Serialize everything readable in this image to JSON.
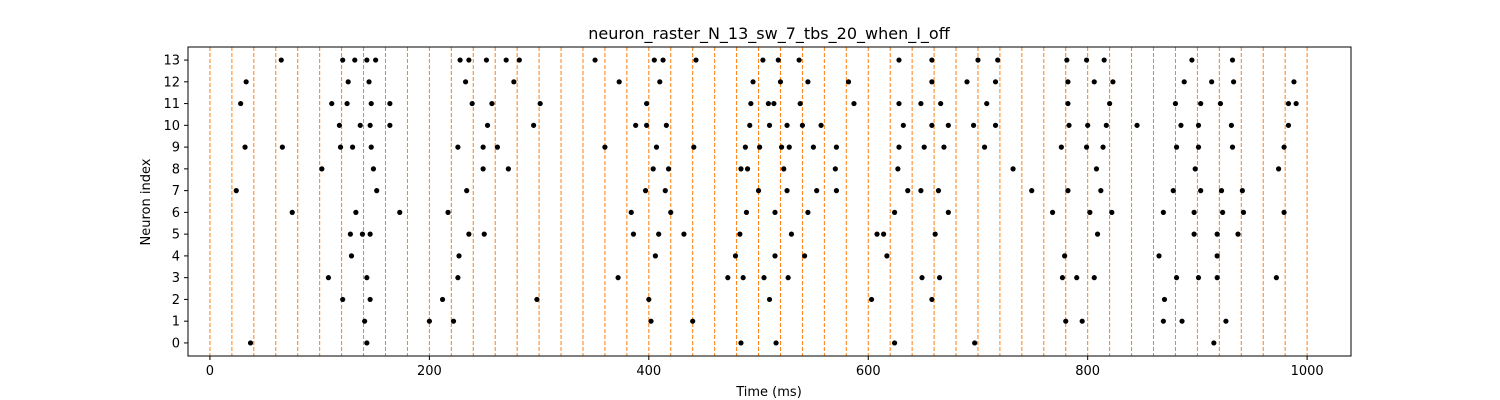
{
  "chart_data": {
    "type": "scatter",
    "title": "neuron_raster_N_13_sw_7_tbs_20_when_I_off",
    "xlabel": "Time (ms)",
    "ylabel": "Neuron index",
    "xlim": [
      -20,
      1040
    ],
    "ylim": [
      -0.6,
      13.6
    ],
    "x_ticks": [
      0,
      200,
      400,
      600,
      800,
      1000
    ],
    "y_ticks": [
      0,
      1,
      2,
      3,
      4,
      5,
      6,
      7,
      8,
      9,
      10,
      11,
      12,
      13
    ],
    "grid": false,
    "marker_color": "#000000",
    "vline_color": "#ff7f0e",
    "vlines": [
      0,
      20,
      40,
      60,
      80,
      100,
      120,
      140,
      160,
      180,
      200,
      220,
      240,
      260,
      280,
      300,
      320,
      340,
      360,
      380,
      400,
      420,
      440,
      460,
      480,
      500,
      520,
      540,
      560,
      580,
      600,
      620,
      640,
      660,
      680,
      700,
      720,
      740,
      760,
      780,
      800,
      820,
      840,
      860,
      880,
      900,
      920,
      940,
      960,
      980,
      1000
    ],
    "series": [
      {
        "values": [
          [
            37,
            0
          ],
          [
            143,
            0
          ],
          [
            484,
            0
          ],
          [
            516,
            0
          ],
          [
            624,
            0
          ],
          [
            697,
            0
          ],
          [
            915,
            0
          ]
        ]
      },
      {
        "values": [
          [
            141,
            1
          ],
          [
            200,
            1
          ],
          [
            222,
            1
          ],
          [
            402,
            1
          ],
          [
            440,
            1
          ],
          [
            780,
            1
          ],
          [
            795,
            1
          ],
          [
            869,
            1
          ],
          [
            886,
            1
          ],
          [
            926,
            1
          ]
        ]
      },
      {
        "values": [
          [
            121,
            2
          ],
          [
            146,
            2
          ],
          [
            212,
            2
          ],
          [
            298,
            2
          ],
          [
            400,
            2
          ],
          [
            510,
            2
          ],
          [
            603,
            2
          ],
          [
            658,
            2
          ],
          [
            870,
            2
          ]
        ]
      },
      {
        "values": [
          [
            108,
            3
          ],
          [
            143,
            3
          ],
          [
            226,
            3
          ],
          [
            372,
            3
          ],
          [
            472,
            3
          ],
          [
            486,
            3
          ],
          [
            505,
            3
          ],
          [
            527,
            3
          ],
          [
            649,
            3
          ],
          [
            665,
            3
          ],
          [
            777,
            3
          ],
          [
            790,
            3
          ],
          [
            806,
            3
          ],
          [
            881,
            3
          ],
          [
            901,
            3
          ],
          [
            918,
            3
          ],
          [
            972,
            3
          ]
        ]
      },
      {
        "values": [
          [
            129,
            4
          ],
          [
            227,
            4
          ],
          [
            406,
            4
          ],
          [
            479,
            4
          ],
          [
            515,
            4
          ],
          [
            542,
            4
          ],
          [
            617,
            4
          ],
          [
            779,
            4
          ],
          [
            865,
            4
          ],
          [
            918,
            4
          ]
        ]
      },
      {
        "values": [
          [
            128,
            5
          ],
          [
            139,
            5
          ],
          [
            146,
            5
          ],
          [
            236,
            5
          ],
          [
            250,
            5
          ],
          [
            386,
            5
          ],
          [
            409,
            5
          ],
          [
            432,
            5
          ],
          [
            483,
            5
          ],
          [
            530,
            5
          ],
          [
            608,
            5
          ],
          [
            614,
            5
          ],
          [
            661,
            5
          ],
          [
            809,
            5
          ],
          [
            897,
            5
          ],
          [
            918,
            5
          ],
          [
            937,
            5
          ]
        ]
      },
      {
        "values": [
          [
            75,
            6
          ],
          [
            133,
            6
          ],
          [
            173,
            6
          ],
          [
            217,
            6
          ],
          [
            384,
            6
          ],
          [
            420,
            6
          ],
          [
            489,
            6
          ],
          [
            515,
            6
          ],
          [
            545,
            6
          ],
          [
            624,
            6
          ],
          [
            673,
            6
          ],
          [
            768,
            6
          ],
          [
            802,
            6
          ],
          [
            822,
            6
          ],
          [
            869,
            6
          ],
          [
            897,
            6
          ],
          [
            923,
            6
          ],
          [
            942,
            6
          ],
          [
            979,
            6
          ]
        ]
      },
      {
        "values": [
          [
            24,
            7
          ],
          [
            152,
            7
          ],
          [
            234,
            7
          ],
          [
            397,
            7
          ],
          [
            415,
            7
          ],
          [
            500,
            7
          ],
          [
            526,
            7
          ],
          [
            553,
            7
          ],
          [
            571,
            7
          ],
          [
            636,
            7
          ],
          [
            648,
            7
          ],
          [
            664,
            7
          ],
          [
            749,
            7
          ],
          [
            782,
            7
          ],
          [
            812,
            7
          ],
          [
            878,
            7
          ],
          [
            903,
            7
          ],
          [
            922,
            7
          ],
          [
            941,
            7
          ]
        ]
      },
      {
        "values": [
          [
            102,
            8
          ],
          [
            149,
            8
          ],
          [
            249,
            8
          ],
          [
            272,
            8
          ],
          [
            404,
            8
          ],
          [
            418,
            8
          ],
          [
            484,
            8
          ],
          [
            490,
            8
          ],
          [
            523,
            8
          ],
          [
            570,
            8
          ],
          [
            627,
            8
          ],
          [
            732,
            8
          ],
          [
            808,
            8
          ],
          [
            898,
            8
          ],
          [
            974,
            8
          ]
        ]
      },
      {
        "values": [
          [
            32,
            9
          ],
          [
            66,
            9
          ],
          [
            119,
            9
          ],
          [
            130,
            9
          ],
          [
            147,
            9
          ],
          [
            226,
            9
          ],
          [
            249,
            9
          ],
          [
            262,
            9
          ],
          [
            360,
            9
          ],
          [
            407,
            9
          ],
          [
            441,
            9
          ],
          [
            488,
            9
          ],
          [
            501,
            9
          ],
          [
            521,
            9
          ],
          [
            528,
            9
          ],
          [
            550,
            9
          ],
          [
            571,
            9
          ],
          [
            628,
            9
          ],
          [
            651,
            9
          ],
          [
            669,
            9
          ],
          [
            706,
            9
          ],
          [
            776,
            9
          ],
          [
            799,
            9
          ],
          [
            814,
            9
          ],
          [
            881,
            9
          ],
          [
            901,
            9
          ],
          [
            932,
            9
          ],
          [
            979,
            9
          ]
        ]
      },
      {
        "values": [
          [
            118,
            10
          ],
          [
            137,
            10
          ],
          [
            146,
            10
          ],
          [
            164,
            10
          ],
          [
            253,
            10
          ],
          [
            295,
            10
          ],
          [
            388,
            10
          ],
          [
            398,
            10
          ],
          [
            416,
            10
          ],
          [
            492,
            10
          ],
          [
            510,
            10
          ],
          [
            526,
            10
          ],
          [
            540,
            10
          ],
          [
            557,
            10
          ],
          [
            632,
            10
          ],
          [
            658,
            10
          ],
          [
            673,
            10
          ],
          [
            696,
            10
          ],
          [
            716,
            10
          ],
          [
            783,
            10
          ],
          [
            800,
            10
          ],
          [
            817,
            10
          ],
          [
            845,
            10
          ],
          [
            885,
            10
          ],
          [
            901,
            10
          ],
          [
            931,
            10
          ],
          [
            983,
            10
          ]
        ]
      },
      {
        "values": [
          [
            28,
            11
          ],
          [
            111,
            11
          ],
          [
            125,
            11
          ],
          [
            147,
            11
          ],
          [
            164,
            11
          ],
          [
            239,
            11
          ],
          [
            257,
            11
          ],
          [
            301,
            11
          ],
          [
            398,
            11
          ],
          [
            493,
            11
          ],
          [
            509,
            11
          ],
          [
            514,
            11
          ],
          [
            538,
            11
          ],
          [
            587,
            11
          ],
          [
            628,
            11
          ],
          [
            648,
            11
          ],
          [
            666,
            11
          ],
          [
            708,
            11
          ],
          [
            782,
            11
          ],
          [
            820,
            11
          ],
          [
            880,
            11
          ],
          [
            903,
            11
          ],
          [
            921,
            11
          ],
          [
            983,
            11
          ],
          [
            990,
            11
          ]
        ]
      },
      {
        "values": [
          [
            33,
            12
          ],
          [
            126,
            12
          ],
          [
            145,
            12
          ],
          [
            233,
            12
          ],
          [
            277,
            12
          ],
          [
            373,
            12
          ],
          [
            410,
            12
          ],
          [
            495,
            12
          ],
          [
            520,
            12
          ],
          [
            545,
            12
          ],
          [
            582,
            12
          ],
          [
            658,
            12
          ],
          [
            690,
            12
          ],
          [
            716,
            12
          ],
          [
            782,
            12
          ],
          [
            806,
            12
          ],
          [
            823,
            12
          ],
          [
            888,
            12
          ],
          [
            913,
            12
          ],
          [
            933,
            12
          ],
          [
            988,
            12
          ]
        ]
      },
      {
        "values": [
          [
            65,
            13
          ],
          [
            121,
            13
          ],
          [
            132,
            13
          ],
          [
            143,
            13
          ],
          [
            151,
            13
          ],
          [
            228,
            13
          ],
          [
            236,
            13
          ],
          [
            252,
            13
          ],
          [
            270,
            13
          ],
          [
            282,
            13
          ],
          [
            351,
            13
          ],
          [
            405,
            13
          ],
          [
            413,
            13
          ],
          [
            443,
            13
          ],
          [
            504,
            13
          ],
          [
            518,
            13
          ],
          [
            537,
            13
          ],
          [
            628,
            13
          ],
          [
            658,
            13
          ],
          [
            700,
            13
          ],
          [
            718,
            13
          ],
          [
            781,
            13
          ],
          [
            799,
            13
          ],
          [
            815,
            13
          ],
          [
            895,
            13
          ],
          [
            932,
            13
          ]
        ]
      }
    ]
  }
}
